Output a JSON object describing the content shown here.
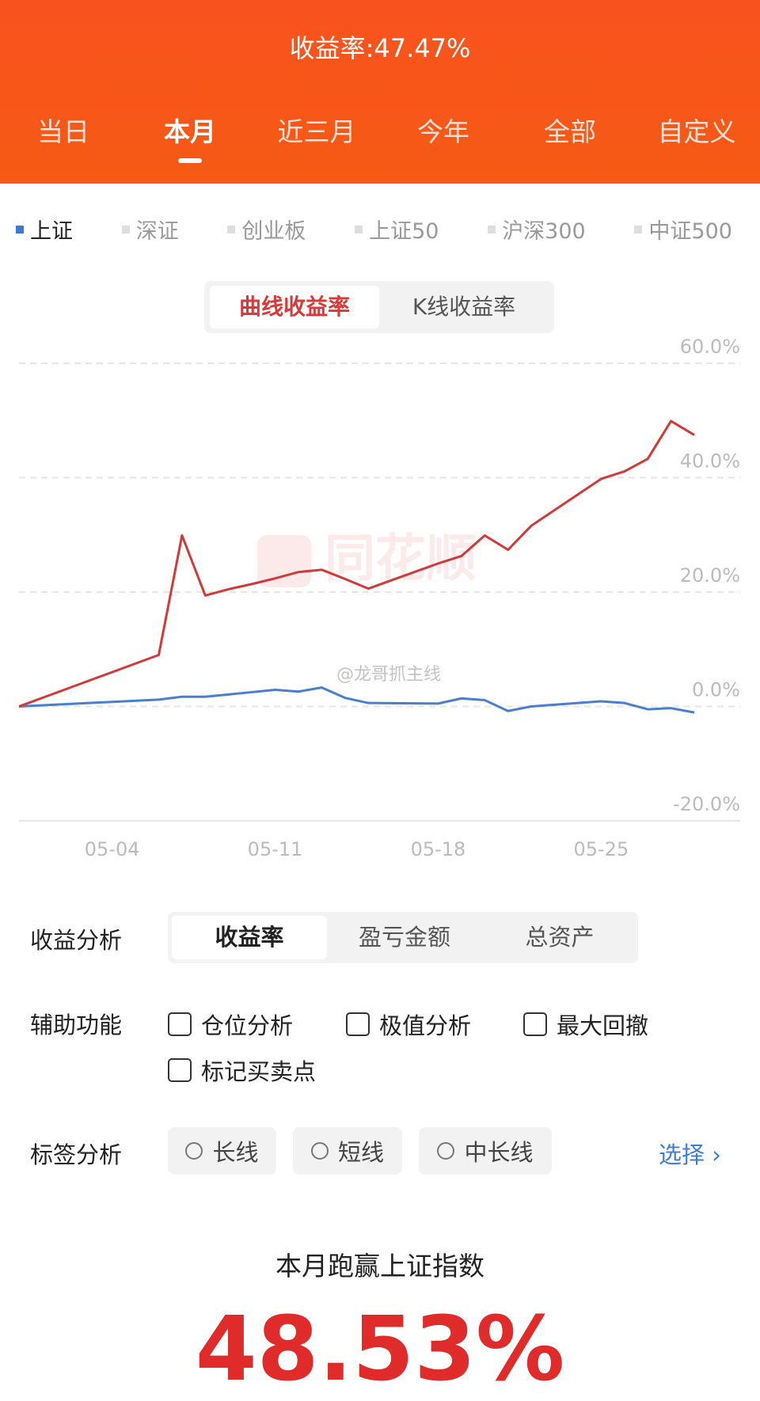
{
  "header": {
    "title": "收益率:47.47%",
    "tabs": [
      "当日",
      "本月",
      "近三月",
      "今年",
      "全部",
      "自定义"
    ],
    "active_tab": 1
  },
  "index_tabs": {
    "items": [
      "上证",
      "深证",
      "创业板",
      "上证50",
      "沪深300",
      "中证500"
    ],
    "active": 0
  },
  "chart_mode": {
    "options": [
      "曲线收益率",
      "K线收益率"
    ],
    "active": 0
  },
  "watermarks": [
    "同花顺",
    "@龙哥抓主线"
  ],
  "chart_data": {
    "type": "line",
    "x": [
      "04-30",
      "05-06",
      "05-07",
      "05-08",
      "05-09",
      "05-10",
      "05-11",
      "05-12",
      "05-13",
      "05-14",
      "05-15",
      "05-18",
      "05-19",
      "05-20",
      "05-21",
      "05-22",
      "05-25",
      "05-26",
      "05-27",
      "05-28",
      "05-29"
    ],
    "series": [
      {
        "color": "#d23a3a",
        "values": [
          0,
          9.0,
          29.9,
          19.4,
          20.5,
          21.4,
          22.4,
          23.5,
          23.9,
          22.3,
          20.6,
          25.0,
          26.3,
          29.9,
          27.4,
          31.6,
          39.8,
          41.1,
          43.3,
          49.9,
          47.47
        ]
      },
      {
        "color": "#4a7fcc",
        "values": [
          0,
          1.2,
          1.7,
          1.7,
          2.1,
          2.5,
          2.9,
          2.6,
          3.3,
          1.5,
          0.6,
          0.5,
          1.4,
          1.1,
          -0.8,
          0,
          0.9,
          0.6,
          -0.5,
          -0.3,
          -1.06
        ]
      }
    ],
    "xticks": [
      "05-04",
      "05-11",
      "05-18",
      "05-25"
    ],
    "ylim": [
      -20,
      60
    ],
    "yticks": [
      {
        "value": 60,
        "label": "60.0%"
      },
      {
        "value": 40,
        "label": "40.0%"
      },
      {
        "value": 20,
        "label": "20.0%"
      },
      {
        "value": 0,
        "label": "0.0%"
      },
      {
        "value": -20,
        "label": "-20.0%"
      }
    ],
    "grid": true
  },
  "analysis": {
    "label": "收益分析",
    "options": [
      "收益率",
      "盈亏金额",
      "总资产"
    ],
    "active": 0
  },
  "aux": {
    "label": "辅助功能",
    "options": [
      "仓位分析",
      "极值分析",
      "最大回撤",
      "标记买卖点"
    ]
  },
  "tags": {
    "label": "标签分析",
    "options": [
      "长线",
      "短线",
      "中长线"
    ],
    "action": "选择"
  },
  "summary": {
    "title": "本月跑赢上证指数",
    "value": "48.53%"
  }
}
